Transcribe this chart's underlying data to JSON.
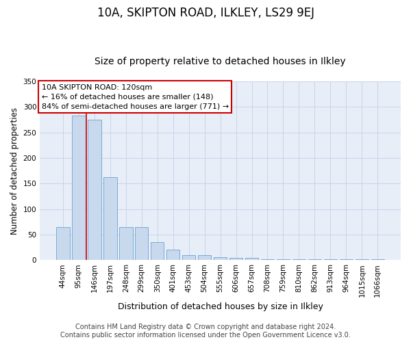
{
  "title": "10A, SKIPTON ROAD, ILKLEY, LS29 9EJ",
  "subtitle": "Size of property relative to detached houses in Ilkley",
  "xlabel": "Distribution of detached houses by size in Ilkley",
  "ylabel": "Number of detached properties",
  "categories": [
    "44sqm",
    "95sqm",
    "146sqm",
    "197sqm",
    "248sqm",
    "299sqm",
    "350sqm",
    "401sqm",
    "453sqm",
    "504sqm",
    "555sqm",
    "606sqm",
    "657sqm",
    "708sqm",
    "759sqm",
    "810sqm",
    "862sqm",
    "913sqm",
    "964sqm",
    "1015sqm",
    "1066sqm"
  ],
  "values": [
    65,
    283,
    275,
    163,
    65,
    65,
    35,
    20,
    10,
    10,
    6,
    4,
    4,
    2,
    1,
    1,
    2,
    1,
    1,
    2,
    2
  ],
  "bar_color": "#c8d9ee",
  "bar_edge_color": "#7aaad4",
  "grid_color": "#c8d4e8",
  "background_color": "#e8eef8",
  "vline_color": "#cc0000",
  "vline_pos": 1.5,
  "annotation_text": "10A SKIPTON ROAD: 120sqm\n← 16% of detached houses are smaller (148)\n84% of semi-detached houses are larger (771) →",
  "annotation_box_color": "white",
  "annotation_box_edge": "#cc0000",
  "ylim": [
    0,
    350
  ],
  "yticks": [
    0,
    50,
    100,
    150,
    200,
    250,
    300,
    350
  ],
  "footer": "Contains HM Land Registry data © Crown copyright and database right 2024.\nContains public sector information licensed under the Open Government Licence v3.0.",
  "title_fontsize": 12,
  "subtitle_fontsize": 10,
  "xlabel_fontsize": 9,
  "ylabel_fontsize": 8.5,
  "tick_fontsize": 7.5,
  "footer_fontsize": 7
}
